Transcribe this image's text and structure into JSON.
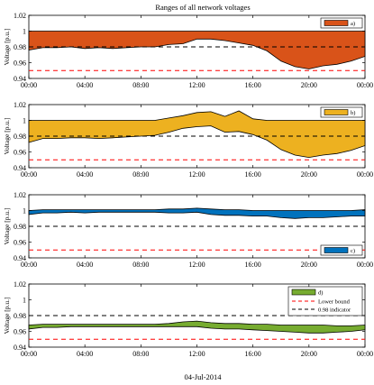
{
  "title": "Ranges of all network voltages",
  "xlabel": "04-Jul-2014",
  "colors": {
    "a": "#d95319",
    "b": "#edb120",
    "c": "#0072bd",
    "d": "#77ac30",
    "lower_bound": "#ff0000",
    "indicator": "#000000"
  },
  "chart_data": [
    {
      "type": "area",
      "panel": "a",
      "legend": [
        "a)"
      ],
      "legend_position": "top-right",
      "ylabel": "Voltage [p.u.]",
      "ylim": [
        0.94,
        1.02
      ],
      "yticks": [
        "0.94",
        "0.96",
        "0.98",
        "1",
        "1.02"
      ],
      "xticks": [
        "00:00",
        "04:00",
        "08:00",
        "12:00",
        "16:00",
        "20:00",
        "00:00"
      ],
      "x_hours": [
        0,
        1,
        2,
        3,
        4,
        5,
        6,
        7,
        8,
        9,
        10,
        11,
        12,
        13,
        14,
        15,
        16,
        17,
        18,
        19,
        20,
        21,
        22,
        23,
        24
      ],
      "upper": [
        1.0,
        1.0,
        1.0,
        1.0,
        1.0,
        1.0,
        1.0,
        1.0,
        1.0,
        1.0,
        1.0,
        1.0,
        1.0,
        1.0,
        1.0,
        1.0,
        1.0,
        1.0,
        1.0,
        1.0,
        1.0,
        1.0,
        1.0,
        1.0,
        1.0
      ],
      "lower": [
        0.976,
        0.979,
        0.979,
        0.98,
        0.978,
        0.979,
        0.978,
        0.979,
        0.98,
        0.98,
        0.983,
        0.984,
        0.99,
        0.99,
        0.988,
        0.985,
        0.982,
        0.975,
        0.962,
        0.955,
        0.952,
        0.956,
        0.958,
        0.962,
        0.968
      ],
      "lower_bound": 0.95,
      "indicator": 0.98
    },
    {
      "type": "area",
      "panel": "b",
      "legend": [
        "b)"
      ],
      "legend_position": "top-right",
      "ylabel": "Voltage [p.u.]",
      "ylim": [
        0.94,
        1.02
      ],
      "yticks": [
        "0.94",
        "0.96",
        "0.98",
        "1",
        "1.02"
      ],
      "xticks": [
        "00:00",
        "04:00",
        "08:00",
        "12:00",
        "16:00",
        "20:00",
        "00:00"
      ],
      "x_hours": [
        0,
        1,
        2,
        3,
        4,
        5,
        6,
        7,
        8,
        9,
        10,
        11,
        12,
        13,
        14,
        15,
        16,
        17,
        18,
        19,
        20,
        21,
        22,
        23,
        24
      ],
      "upper": [
        1.0,
        1.0,
        1.0,
        1.0,
        1.0,
        1.0,
        1.0,
        1.0,
        1.0,
        1.0,
        1.003,
        1.006,
        1.01,
        1.011,
        1.005,
        1.012,
        1.002,
        1.0,
        1.0,
        1.0,
        1.0,
        1.0,
        1.0,
        1.0,
        1.0
      ],
      "lower": [
        0.972,
        0.977,
        0.977,
        0.978,
        0.978,
        0.977,
        0.978,
        0.979,
        0.98,
        0.981,
        0.985,
        0.99,
        0.992,
        0.993,
        0.985,
        0.986,
        0.982,
        0.975,
        0.963,
        0.956,
        0.953,
        0.956,
        0.958,
        0.962,
        0.968
      ],
      "lower_bound": 0.95,
      "indicator": 0.98
    },
    {
      "type": "area",
      "panel": "c",
      "legend": [
        "c)"
      ],
      "legend_position": "bottom-right",
      "ylabel": "Voltage [p.u.]",
      "ylim": [
        0.94,
        1.02
      ],
      "yticks": [
        "0.94",
        "0.96",
        "0.98",
        "1",
        "1.02"
      ],
      "xticks": [
        "00:00",
        "04:00",
        "08:00",
        "12:00",
        "16:00",
        "20:00",
        "00:00"
      ],
      "x_hours": [
        0,
        1,
        2,
        3,
        4,
        5,
        6,
        7,
        8,
        9,
        10,
        11,
        12,
        13,
        14,
        15,
        16,
        17,
        18,
        19,
        20,
        21,
        22,
        23,
        24
      ],
      "upper": [
        1.0,
        1.001,
        1.001,
        1.001,
        1.001,
        1.001,
        1.001,
        1.001,
        1.001,
        1.001,
        1.002,
        1.002,
        1.003,
        1.002,
        1.001,
        1.001,
        1.0,
        1.0,
        1.0,
        1.0,
        1.0,
        1.0,
        1.0,
        1.0,
        1.001
      ],
      "lower": [
        0.995,
        0.997,
        0.997,
        0.998,
        0.997,
        0.998,
        0.998,
        0.998,
        0.998,
        0.998,
        0.997,
        0.997,
        0.998,
        0.995,
        0.994,
        0.994,
        0.993,
        0.993,
        0.991,
        0.99,
        0.991,
        0.991,
        0.992,
        0.993,
        0.993
      ],
      "lower_bound": 0.95,
      "indicator": 0.98
    },
    {
      "type": "area",
      "panel": "d",
      "legend": [
        "d)",
        "Lower bound",
        "0.98 indicator"
      ],
      "legend_position": "top-right",
      "ylabel": "Voltage [p.u.]",
      "ylim": [
        0.94,
        1.02
      ],
      "yticks": [
        "0.94",
        "0.96",
        "0.98",
        "1",
        "1.02"
      ],
      "xticks": [
        "00:00",
        "04:00",
        "08:00",
        "12:00",
        "16:00",
        "20:00",
        "00:00"
      ],
      "x_hours": [
        0,
        1,
        2,
        3,
        4,
        5,
        6,
        7,
        8,
        9,
        10,
        11,
        12,
        13,
        14,
        15,
        16,
        17,
        18,
        19,
        20,
        21,
        22,
        23,
        24
      ],
      "upper": [
        0.968,
        0.969,
        0.969,
        0.969,
        0.969,
        0.969,
        0.969,
        0.969,
        0.969,
        0.969,
        0.97,
        0.972,
        0.973,
        0.971,
        0.97,
        0.97,
        0.969,
        0.969,
        0.968,
        0.968,
        0.968,
        0.968,
        0.967,
        0.967,
        0.968
      ],
      "lower": [
        0.963,
        0.965,
        0.965,
        0.966,
        0.966,
        0.966,
        0.966,
        0.966,
        0.966,
        0.966,
        0.966,
        0.966,
        0.966,
        0.964,
        0.963,
        0.963,
        0.962,
        0.961,
        0.96,
        0.959,
        0.958,
        0.958,
        0.959,
        0.96,
        0.962
      ],
      "lower_bound": 0.95,
      "indicator": 0.98
    }
  ]
}
